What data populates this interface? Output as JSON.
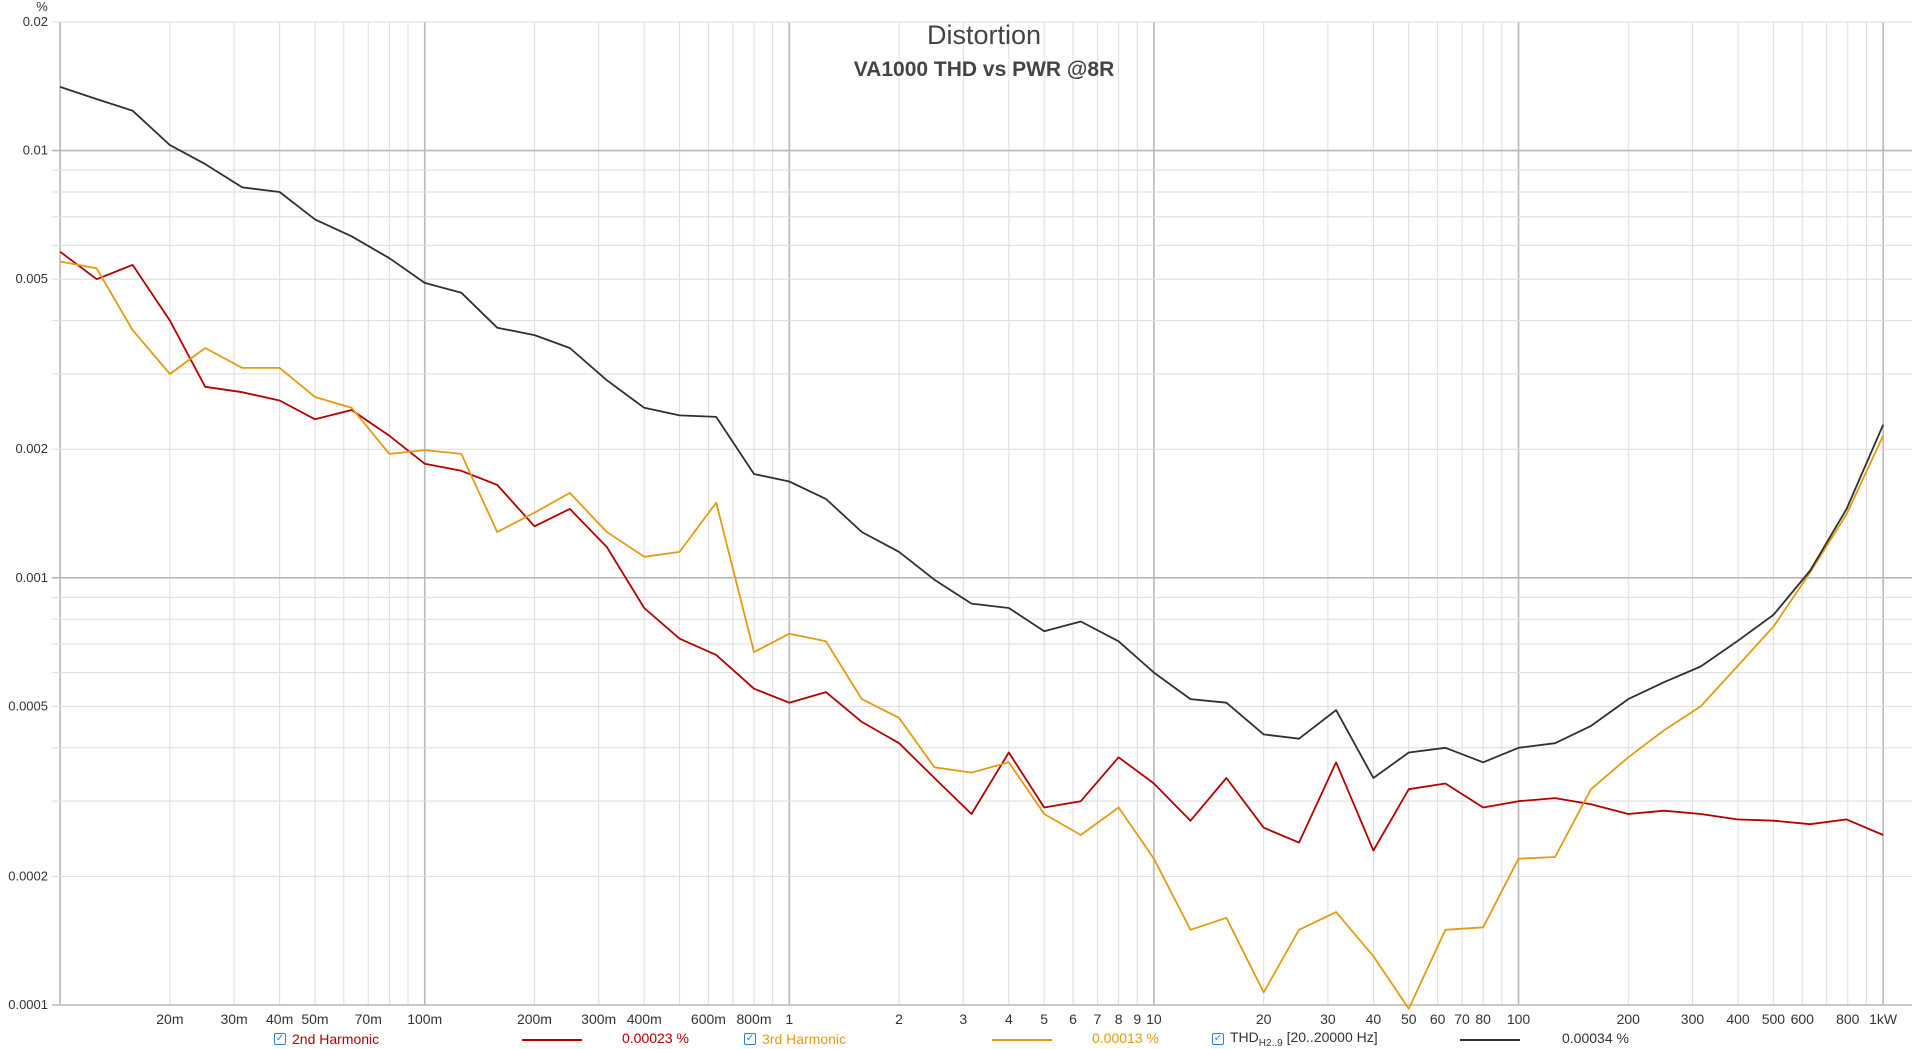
{
  "chart_data": {
    "type": "line",
    "title": "Distortion",
    "subtitle": "VA1000 THD vs PWR @8R",
    "ylabel": "%",
    "xscale": "log",
    "yscale": "log",
    "xlim": [
      0.0095,
      1200
    ],
    "ylim": [
      0.0001,
      0.02
    ],
    "grid": true,
    "x_ticks": [
      {
        "v": 0.02,
        "label": "20m"
      },
      {
        "v": 0.03,
        "label": "30m"
      },
      {
        "v": 0.04,
        "label": "40m"
      },
      {
        "v": 0.05,
        "label": "50m"
      },
      {
        "v": 0.07,
        "label": "70m"
      },
      {
        "v": 0.1,
        "label": "100m"
      },
      {
        "v": 0.2,
        "label": "200m"
      },
      {
        "v": 0.3,
        "label": "300m"
      },
      {
        "v": 0.4,
        "label": "400m"
      },
      {
        "v": 0.6,
        "label": "600m"
      },
      {
        "v": 0.8,
        "label": "800m"
      },
      {
        "v": 1,
        "label": "1"
      },
      {
        "v": 2,
        "label": "2"
      },
      {
        "v": 3,
        "label": "3"
      },
      {
        "v": 4,
        "label": "4"
      },
      {
        "v": 5,
        "label": "5"
      },
      {
        "v": 6,
        "label": "6"
      },
      {
        "v": 7,
        "label": "7"
      },
      {
        "v": 8,
        "label": "8"
      },
      {
        "v": 9,
        "label": "9"
      },
      {
        "v": 10,
        "label": "10"
      },
      {
        "v": 20,
        "label": "20"
      },
      {
        "v": 30,
        "label": "30"
      },
      {
        "v": 40,
        "label": "40"
      },
      {
        "v": 50,
        "label": "50"
      },
      {
        "v": 60,
        "label": "60"
      },
      {
        "v": 70,
        "label": "70"
      },
      {
        "v": 80,
        "label": "80"
      },
      {
        "v": 100,
        "label": "100"
      },
      {
        "v": 200,
        "label": "200"
      },
      {
        "v": 300,
        "label": "300"
      },
      {
        "v": 400,
        "label": "400"
      },
      {
        "v": 500,
        "label": "500"
      },
      {
        "v": 600,
        "label": "600"
      },
      {
        "v": 800,
        "label": "800"
      },
      {
        "v": 1000,
        "label": "1kW"
      }
    ],
    "y_ticks": [
      {
        "v": 0.0001,
        "label": "0.0001"
      },
      {
        "v": 0.0002,
        "label": "0.0002"
      },
      {
        "v": 0.0005,
        "label": "0.0005"
      },
      {
        "v": 0.001,
        "label": "0.001"
      },
      {
        "v": 0.002,
        "label": "0.002"
      },
      {
        "v": 0.005,
        "label": "0.005"
      },
      {
        "v": 0.01,
        "label": "0.01"
      },
      {
        "v": 0.02,
        "label": "0.02"
      }
    ],
    "series": [
      {
        "name": "2nd Harmonic",
        "color": "#b30000",
        "legend_value": "0.00023 %",
        "x": [
          0.01,
          0.0126,
          0.0158,
          0.02,
          0.025,
          0.0316,
          0.04,
          0.05,
          0.063,
          0.08,
          0.1,
          0.126,
          0.158,
          0.2,
          0.25,
          0.316,
          0.4,
          0.5,
          0.63,
          0.8,
          1,
          1.26,
          1.58,
          2,
          2.5,
          3.16,
          4,
          5,
          6.3,
          8,
          10,
          12.6,
          15.8,
          20,
          25,
          31.6,
          40,
          50,
          63,
          80,
          100,
          126,
          158,
          200,
          251,
          316,
          398,
          501,
          631,
          794,
          1000
        ],
        "y": [
          0.0058,
          0.005,
          0.0054,
          0.004,
          0.0028,
          0.00272,
          0.0026,
          0.00235,
          0.00247,
          0.00215,
          0.00185,
          0.00178,
          0.00165,
          0.00132,
          0.00145,
          0.00118,
          0.00085,
          0.00072,
          0.00066,
          0.00055,
          0.00051,
          0.00054,
          0.00046,
          0.00041,
          0.00034,
          0.00028,
          0.00039,
          0.00029,
          0.0003,
          0.00038,
          0.00033,
          0.00027,
          0.00034,
          0.00026,
          0.00024,
          0.00037,
          0.00023,
          0.00032,
          0.00033,
          0.00029,
          0.0003,
          0.000305,
          0.000295,
          0.00028,
          0.000285,
          0.00028,
          0.000272,
          0.00027,
          0.000265,
          0.000272,
          0.00025
        ]
      },
      {
        "name": "3rd Harmonic",
        "color": "#e39b12",
        "legend_value": "0.00013 %",
        "x": [
          0.01,
          0.0126,
          0.0158,
          0.02,
          0.025,
          0.0316,
          0.04,
          0.05,
          0.063,
          0.08,
          0.1,
          0.126,
          0.158,
          0.2,
          0.25,
          0.316,
          0.4,
          0.5,
          0.63,
          0.8,
          1,
          1.26,
          1.58,
          2,
          2.5,
          3.16,
          4,
          5,
          6.3,
          8,
          10,
          12.6,
          15.8,
          20,
          25,
          31.6,
          40,
          50,
          63,
          80,
          100,
          126,
          158,
          200,
          251,
          316,
          398,
          501,
          631,
          794,
          1000
        ],
        "y": [
          0.0055,
          0.0053,
          0.0038,
          0.003,
          0.00345,
          0.0031,
          0.0031,
          0.00265,
          0.0025,
          0.00195,
          0.00199,
          0.00195,
          0.00128,
          0.00142,
          0.00158,
          0.00128,
          0.00112,
          0.00115,
          0.0015,
          0.00067,
          0.00074,
          0.00071,
          0.00052,
          0.00047,
          0.00036,
          0.00035,
          0.00037,
          0.00028,
          0.00025,
          0.00029,
          0.00022,
          0.00015,
          0.00016,
          0.000107,
          0.00015,
          0.000165,
          0.00013,
          9.8e-05,
          0.00015,
          0.000152,
          0.00022,
          0.000222,
          0.00032,
          0.00038,
          0.00044,
          0.0005,
          0.00062,
          0.00077,
          0.00103,
          0.00141,
          0.00215
        ]
      },
      {
        "name": "THD",
        "name_sub": "H2..9",
        "name_suffix": "[20..20000 Hz]",
        "color": "#303030",
        "legend_value": "0.00034 %",
        "x": [
          0.01,
          0.0126,
          0.0158,
          0.02,
          0.025,
          0.0316,
          0.04,
          0.05,
          0.063,
          0.08,
          0.1,
          0.126,
          0.158,
          0.2,
          0.25,
          0.316,
          0.4,
          0.5,
          0.63,
          0.8,
          1,
          1.26,
          1.58,
          2,
          2.5,
          3.16,
          4,
          5,
          6.3,
          8,
          10,
          12.6,
          15.8,
          20,
          25,
          31.6,
          40,
          50,
          63,
          80,
          100,
          126,
          158,
          200,
          251,
          316,
          398,
          501,
          631,
          794,
          1000
        ],
        "y": [
          0.0141,
          0.0132,
          0.0124,
          0.0103,
          0.0093,
          0.0082,
          0.008,
          0.0069,
          0.0063,
          0.0056,
          0.0049,
          0.00465,
          0.00385,
          0.0037,
          0.00345,
          0.0029,
          0.0025,
          0.0024,
          0.00238,
          0.00175,
          0.00168,
          0.00153,
          0.00128,
          0.00115,
          0.00099,
          0.00087,
          0.00085,
          0.00075,
          0.00079,
          0.00071,
          0.0006,
          0.00052,
          0.00051,
          0.00043,
          0.00042,
          0.00049,
          0.00034,
          0.00039,
          0.0004,
          0.00037,
          0.0004,
          0.00041,
          0.00045,
          0.00052,
          0.00057,
          0.00062,
          0.00071,
          0.00082,
          0.00104,
          0.00145,
          0.00228
        ]
      }
    ]
  }
}
